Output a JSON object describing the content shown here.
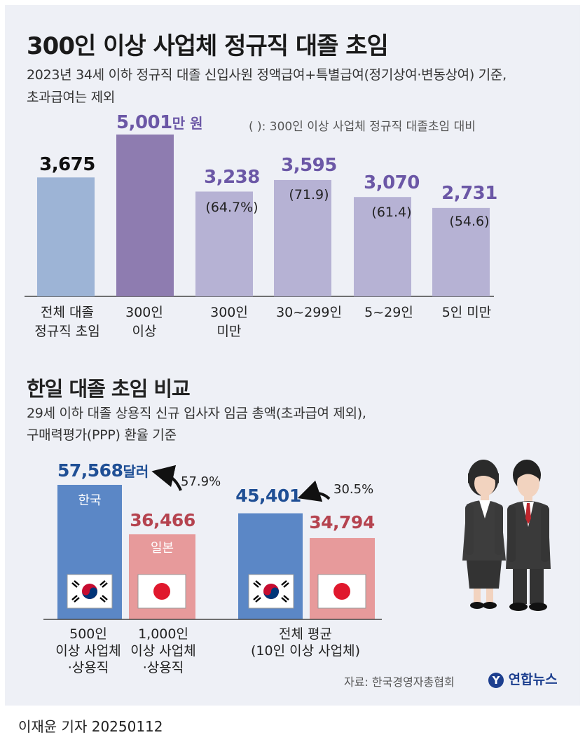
{
  "title": "300인 이상 사업체 정규직 대졸 초임",
  "subtitle_line1": "2023년 34세 이하 정규직 대졸 신입사원 정액급여+특별급여(정기상여·변동상여) 기준,",
  "subtitle_line2": "초과급여는 제외",
  "note": "( ): 300인 이상 사업체 정규직 대졸초임 대비",
  "bar_labels": {
    "top_value": "5,001",
    "top_unit": "만 원",
    "values": [
      "3,675",
      "",
      "3,238",
      "3,595",
      "3,070",
      "2,731"
    ],
    "percents": [
      "",
      "",
      "(64.7%)",
      "(71.9)",
      "(61.4)",
      "(54.6)"
    ],
    "categories": [
      "전체 대졸\n정규직 초임",
      "300인\n이상",
      "300인\n미만",
      "30~299인",
      "5~29인",
      "5인 미만"
    ]
  },
  "section2_title": "한일 대졸 초임 비교",
  "section2_sub1": "29세 이하 대졸 상용직 신규 입사자 임금 총액(초과급여 제외),",
  "section2_sub2": "구매력평가(PPP) 환율 기준",
  "compare": {
    "kr_label": "한국",
    "jp_label": "일본",
    "unit": "달러",
    "group1_kr": "57,568",
    "group1_jp": "36,466",
    "group1_gap": "57.9%",
    "group2_kr": "45,401",
    "group2_jp": "34,794",
    "group2_gap": "30.5%",
    "cat1": "500인\n이상 사업체\n·상용직",
    "cat2": "1,000인\n이상 사업체\n·상용직",
    "cat3": "전체 평균\n(10인 이상 사업체)"
  },
  "source": "자료: 한국경영자총협회",
  "logo": "연합뉴스",
  "byline": "이재윤 기자  20250112",
  "colors": {
    "total_bar": "#9db4d6",
    "big_bar": "#8e7cb0",
    "other_bar": "#b6b2d4",
    "purple_text": "#6b57a6",
    "korea": "#5b87c6",
    "japan": "#e79a9b",
    "korea_text": "#1f4f95",
    "japan_text": "#b5434f"
  },
  "chart_data": [
    {
      "type": "bar",
      "title": "300인 이상 사업체 정규직 대졸 초임",
      "categories": [
        "전체 대졸 정규직 초임",
        "300인 이상",
        "300인 미만",
        "30~299인",
        "5~29인",
        "5인 미만"
      ],
      "values": [
        3675,
        5001,
        3238,
        3595,
        3070,
        2731
      ],
      "ratio_to_300plus": [
        null,
        null,
        64.7,
        71.9,
        61.4,
        54.6
      ],
      "ylim": [
        0,
        5100
      ],
      "grid": false
    },
    {
      "type": "bar",
      "title": "한일 대졸 초임 비교",
      "categories": [
        "500인 이상 사업체·상용직 / 1,000인 이상 사업체·상용직",
        "전체 평균(10인 이상 사업체)"
      ],
      "series": [
        {
          "name": "한국",
          "values": [
            57568,
            45401
          ]
        },
        {
          "name": "일본",
          "values": [
            36466,
            34794
          ]
        }
      ],
      "gap_percent": [
        57.9,
        30.5
      ],
      "ylim": [
        0,
        60000
      ],
      "grid": false
    }
  ]
}
